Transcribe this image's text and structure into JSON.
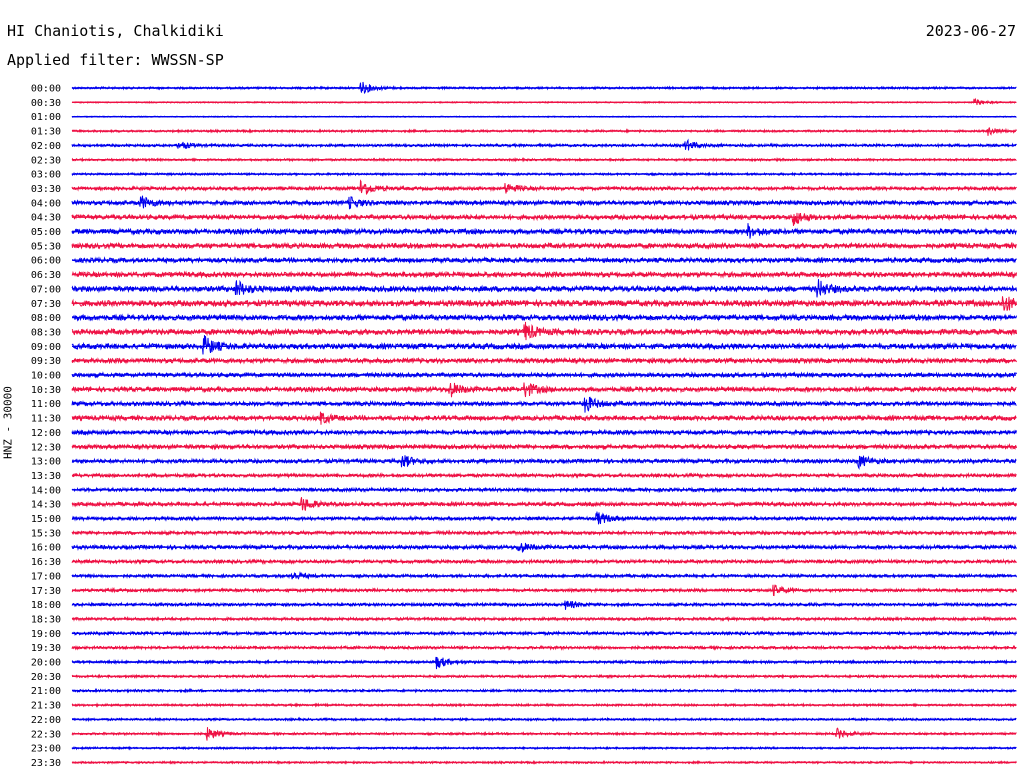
{
  "header": {
    "station": "HI Chaniotis, Chalkidiki",
    "date": "2023-06-27",
    "filter": "Applied filter: WWSSN-SP"
  },
  "chart_data": {
    "type": "helicorder",
    "title": "HI Chaniotis, Chalkidiki",
    "date": "2023-06-27",
    "filter": "WWSSN-SP",
    "ylabel": "HNZ - 30000",
    "row_labels": [
      "00:00",
      "00:30",
      "01:00",
      "01:30",
      "02:00",
      "02:30",
      "03:00",
      "03:30",
      "04:00",
      "04:30",
      "05:00",
      "05:30",
      "06:00",
      "06:30",
      "07:00",
      "07:30",
      "08:00",
      "08:30",
      "09:00",
      "09:30",
      "10:00",
      "10:30",
      "11:00",
      "11:30",
      "12:00",
      "12:30",
      "13:00",
      "13:30",
      "14:00",
      "14:30",
      "15:00",
      "15:30",
      "16:00",
      "16:30",
      "17:00",
      "17:30",
      "18:00",
      "18:30",
      "19:00",
      "19:30",
      "20:00",
      "20:30",
      "21:00",
      "21:30",
      "22:00",
      "22:30",
      "23:00",
      "23:30"
    ],
    "colors": [
      "#0000ee",
      "#ee1144"
    ],
    "minutes_per_line": 30,
    "noise_level": [
      1.0,
      0.6,
      0.5,
      1.0,
      1.2,
      1.0,
      1.0,
      1.6,
      2.0,
      2.2,
      2.4,
      2.4,
      2.2,
      2.4,
      2.6,
      2.8,
      2.6,
      2.6,
      2.6,
      2.2,
      2.0,
      2.2,
      2.0,
      2.2,
      2.0,
      2.0,
      1.8,
      1.6,
      1.6,
      1.8,
      1.6,
      1.6,
      1.8,
      1.6,
      1.4,
      1.4,
      1.4,
      1.3,
      1.4,
      1.3,
      1.2,
      1.1,
      1.1,
      1.0,
      1.0,
      1.0,
      0.9,
      0.9
    ],
    "events": [
      {
        "row": 0,
        "minute": 9.2,
        "amplitude": 6
      },
      {
        "row": 1,
        "minute": 28.7,
        "amplitude": 3
      },
      {
        "row": 3,
        "minute": 29.1,
        "amplitude": 4
      },
      {
        "row": 4,
        "minute": 3.4,
        "amplitude": 4
      },
      {
        "row": 4,
        "minute": 19.5,
        "amplitude": 5
      },
      {
        "row": 7,
        "minute": 9.2,
        "amplitude": 8
      },
      {
        "row": 7,
        "minute": 13.8,
        "amplitude": 5
      },
      {
        "row": 8,
        "minute": 2.2,
        "amplitude": 6
      },
      {
        "row": 8,
        "minute": 8.8,
        "amplitude": 6
      },
      {
        "row": 9,
        "minute": 22.9,
        "amplitude": 8
      },
      {
        "row": 10,
        "minute": 21.5,
        "amplitude": 6
      },
      {
        "row": 14,
        "minute": 5.2,
        "amplitude": 8
      },
      {
        "row": 14,
        "minute": 23.7,
        "amplitude": 8
      },
      {
        "row": 15,
        "minute": 29.6,
        "amplitude": 8
      },
      {
        "row": 17,
        "minute": 14.4,
        "amplitude": 8
      },
      {
        "row": 18,
        "minute": 4.2,
        "amplitude": 9
      },
      {
        "row": 21,
        "minute": 12.0,
        "amplitude": 7
      },
      {
        "row": 21,
        "minute": 14.4,
        "amplitude": 7
      },
      {
        "row": 22,
        "minute": 16.3,
        "amplitude": 8
      },
      {
        "row": 23,
        "minute": 7.9,
        "amplitude": 5
      },
      {
        "row": 26,
        "minute": 10.5,
        "amplitude": 6
      },
      {
        "row": 26,
        "minute": 25.0,
        "amplitude": 6
      },
      {
        "row": 29,
        "minute": 7.3,
        "amplitude": 7
      },
      {
        "row": 30,
        "minute": 16.7,
        "amplitude": 6
      },
      {
        "row": 32,
        "minute": 14.2,
        "amplitude": 5
      },
      {
        "row": 34,
        "minute": 7.0,
        "amplitude": 4
      },
      {
        "row": 35,
        "minute": 22.3,
        "amplitude": 5
      },
      {
        "row": 36,
        "minute": 15.7,
        "amplitude": 4
      },
      {
        "row": 40,
        "minute": 11.6,
        "amplitude": 6
      },
      {
        "row": 45,
        "minute": 4.3,
        "amplitude": 6
      },
      {
        "row": 45,
        "minute": 24.3,
        "amplitude": 5
      }
    ]
  }
}
